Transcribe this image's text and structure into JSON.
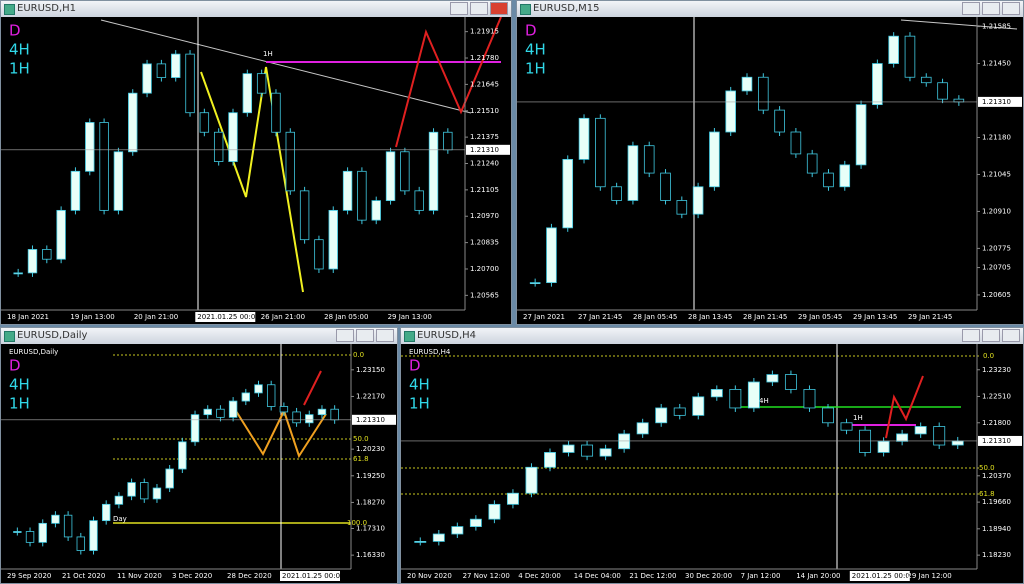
{
  "windows": [
    {
      "title": "EURUSD,H1",
      "labels": [
        {
          "text": "D",
          "color": "#e020e0"
        },
        {
          "text": "4H",
          "color": "#30d8e8"
        },
        {
          "text": "1H",
          "color": "#30d8e8"
        }
      ],
      "ylim": [
        1.2049,
        1.2199
      ],
      "price_ticks": [
        {
          "value": 1.21915,
          "label": "1.21915"
        },
        {
          "value": 1.2178,
          "label": "1.21780"
        },
        {
          "value": 1.21645,
          "label": "1.21645"
        },
        {
          "value": 1.2151,
          "label": "1.21510"
        },
        {
          "value": 1.21375,
          "label": "1.21375"
        },
        {
          "value": 1.2124,
          "label": "1.21240"
        },
        {
          "value": 1.21105,
          "label": "1.21105"
        },
        {
          "value": 1.2097,
          "label": "1.20970"
        },
        {
          "value": 1.20835,
          "label": "1.20835"
        },
        {
          "value": 1.207,
          "label": "1.20700"
        },
        {
          "value": 1.20565,
          "label": "1.20565"
        }
      ],
      "current_price": {
        "value": 1.2131,
        "label": "1.21310"
      },
      "time_labels": [
        {
          "label": "18 Jan 2021"
        },
        {
          "label": "19 Jan 13:00"
        },
        {
          "label": "20 Jan 21:00"
        },
        {
          "label": "2021.01.25 00:00",
          "highlight": true
        },
        {
          "label": "26 Jan 21:00"
        },
        {
          "label": "28 Jan 05:00"
        },
        {
          "label": "29 Jan 13:00"
        }
      ],
      "annotations": [
        "1H"
      ],
      "closes": [
        1.2068,
        1.208,
        1.2075,
        1.21,
        1.212,
        1.2145,
        1.21,
        1.213,
        1.216,
        1.2175,
        1.2168,
        1.218,
        1.215,
        1.214,
        1.2125,
        1.215,
        1.217,
        1.216,
        1.214,
        1.211,
        1.2085,
        1.207,
        1.21,
        1.212,
        1.2095,
        1.2105,
        1.213,
        1.211,
        1.21,
        1.214,
        1.2131
      ]
    },
    {
      "title": "EURUSD,M15",
      "labels": [
        {
          "text": "D",
          "color": "#e020e0"
        },
        {
          "text": "4H",
          "color": "#30d8e8"
        },
        {
          "text": "1H",
          "color": "#30d8e8"
        }
      ],
      "ylim": [
        1.2055,
        1.2162
      ],
      "price_ticks": [
        {
          "value": 1.21585,
          "label": "1.21585"
        },
        {
          "value": 1.2145,
          "label": "1.21450"
        },
        {
          "value": 1.2118,
          "label": "1.21180"
        },
        {
          "value": 1.21045,
          "label": "1.21045"
        },
        {
          "value": 1.2091,
          "label": "1.20910"
        },
        {
          "value": 1.20775,
          "label": "1.20775"
        },
        {
          "value": 1.20705,
          "label": "1.20705"
        },
        {
          "value": 1.20605,
          "label": "1.20605"
        }
      ],
      "current_price": {
        "value": 1.2131,
        "label": "1.21310"
      },
      "time_labels": [
        {
          "label": "27 Jan 2021"
        },
        {
          "label": "27 Jan 21:45"
        },
        {
          "label": "28 Jan 05:45"
        },
        {
          "label": "28 Jan 13:45"
        },
        {
          "label": "28 Jan 21:45"
        },
        {
          "label": "29 Jan 05:45"
        },
        {
          "label": "29 Jan 13:45"
        },
        {
          "label": "29 Jan 21:45"
        }
      ],
      "annotations": [],
      "closes": [
        1.2065,
        1.2085,
        1.211,
        1.2125,
        1.21,
        1.2095,
        1.2115,
        1.2105,
        1.2095,
        1.209,
        1.21,
        1.212,
        1.2135,
        1.214,
        1.2128,
        1.212,
        1.2112,
        1.2105,
        1.21,
        1.2108,
        1.213,
        1.2145,
        1.2155,
        1.214,
        1.2138,
        1.2132,
        1.2131
      ]
    },
    {
      "title": "EURUSD,Daily",
      "inner_label": "EURUSD,Daily",
      "labels": [
        {
          "text": "D",
          "color": "#e020e0"
        },
        {
          "text": "4H",
          "color": "#30d8e8"
        },
        {
          "text": "1H",
          "color": "#30d8e8"
        }
      ],
      "ylim": [
        1.1582,
        1.241
      ],
      "price_ticks": [
        {
          "value": 1.2315,
          "label": "1.23150"
        },
        {
          "value": 1.2217,
          "label": "1.22170"
        },
        {
          "value": 1.2023,
          "label": "1.20230"
        },
        {
          "value": 1.1925,
          "label": "1.19250"
        },
        {
          "value": 1.1827,
          "label": "1.18270"
        },
        {
          "value": 1.1731,
          "label": "1.17310"
        },
        {
          "value": 1.1633,
          "label": "1.16330"
        }
      ],
      "current_price": {
        "value": 1.2131,
        "label": "1.21310"
      },
      "time_labels": [
        {
          "label": "29 Sep 2020"
        },
        {
          "label": "21 Oct 2020"
        },
        {
          "label": "11 Nov 2020"
        },
        {
          "label": "3 Dec 2020"
        },
        {
          "label": "28 Dec 2020"
        },
        {
          "label": "2021.01.25 00:00",
          "highlight": true
        }
      ],
      "annotations": [
        "0.0",
        "50.0",
        "61.8",
        "100.0",
        "Day"
      ],
      "closes": [
        1.172,
        1.168,
        1.175,
        1.178,
        1.17,
        1.165,
        1.176,
        1.182,
        1.185,
        1.19,
        1.184,
        1.188,
        1.195,
        1.205,
        1.215,
        1.217,
        1.214,
        1.22,
        1.223,
        1.226,
        1.218,
        1.216,
        1.212,
        1.215,
        1.217,
        1.2131
      ]
    },
    {
      "title": "EURUSD,H4",
      "inner_label": "EURUSD,H4",
      "labels": [
        {
          "text": "D",
          "color": "#e020e0"
        },
        {
          "text": "4H",
          "color": "#30d8e8"
        },
        {
          "text": "1H",
          "color": "#30d8e8"
        }
      ],
      "ylim": [
        1.17856,
        1.23925
      ],
      "price_ticks": [
        {
          "value": 1.2323,
          "label": "1.23230"
        },
        {
          "value": 1.2251,
          "label": "1.22510"
        },
        {
          "value": 1.218,
          "label": "1.21800"
        },
        {
          "value": 1.2037,
          "label": "1.20370"
        },
        {
          "value": 1.1966,
          "label": "1.19660"
        },
        {
          "value": 1.1894,
          "label": "1.18940"
        },
        {
          "value": 1.1823,
          "label": "1.18230"
        }
      ],
      "current_price": {
        "value": 1.2131,
        "label": "1.21310"
      },
      "time_labels": [
        {
          "label": "20 Nov 2020"
        },
        {
          "label": "27 Nov 12:00"
        },
        {
          "label": "4 Dec 20:00"
        },
        {
          "label": "14 Dec 04:00"
        },
        {
          "label": "21 Dec 12:00"
        },
        {
          "label": "30 Dec 20:00"
        },
        {
          "label": "7 Jan 12:00"
        },
        {
          "label": "14 Jan 20:00"
        },
        {
          "label": "2021.01.25 00:00",
          "highlight": true
        },
        {
          "label": "29 Jan 12:00"
        }
      ],
      "annotations": [
        "0.0",
        "50.0",
        "61.8",
        "4H",
        "1H"
      ],
      "closes": [
        1.186,
        1.188,
        1.19,
        1.192,
        1.196,
        1.199,
        1.206,
        1.21,
        1.212,
        1.209,
        1.211,
        1.215,
        1.218,
        1.222,
        1.22,
        1.225,
        1.227,
        1.222,
        1.229,
        1.231,
        1.227,
        1.222,
        1.218,
        1.216,
        1.21,
        1.213,
        1.215,
        1.217,
        1.212,
        1.2131
      ]
    }
  ],
  "style": {
    "up_color": "#e8fff8",
    "down_color": "#000000",
    "candle_outline": "#40c8e0",
    "background": "#000000",
    "axis_text": "#ffffff"
  }
}
